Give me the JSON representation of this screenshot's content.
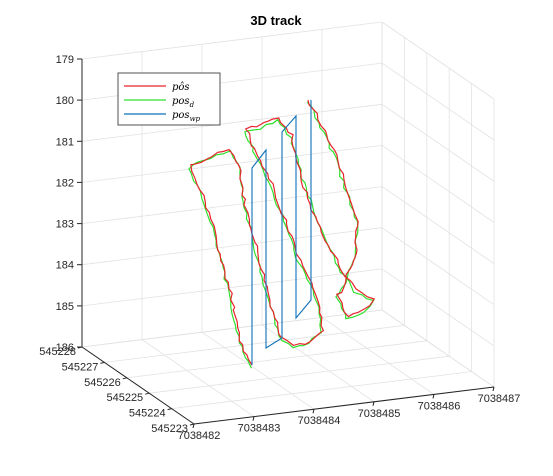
{
  "chart_data": {
    "type": "line",
    "title": "3D track",
    "legend_placement": "top-left",
    "grid": true,
    "axes": {
      "x": {
        "ticks": [
          "7038482",
          "7038483",
          "7038484",
          "7038485",
          "7038486",
          "7038487"
        ],
        "range": [
          7038482,
          7038487
        ]
      },
      "y": {
        "ticks": [
          "545223",
          "545224",
          "545225",
          "545226",
          "545227",
          "545228"
        ],
        "range": [
          545223,
          545228
        ]
      },
      "z": {
        "ticks": [
          "179",
          "180",
          "181",
          "182",
          "183",
          "184",
          "185",
          "186"
        ],
        "range": [
          179,
          186
        ],
        "reversed": true
      }
    },
    "series": [
      {
        "name": "pôs",
        "color": "#e8242b",
        "style": "solid"
      },
      {
        "name": "pos_d",
        "color": "#2ee02e",
        "style": "solid"
      },
      {
        "name": "pos_wp",
        "color": "#0f71b8",
        "style": "solid"
      }
    ],
    "legend": {
      "entries": [
        {
          "main": "pôs",
          "sub": "",
          "color": "#e8242b"
        },
        {
          "main": "pos",
          "sub": "d",
          "color": "#2ee02e"
        },
        {
          "main": "pos",
          "sub": "wp",
          "color": "#0f71b8"
        }
      ]
    },
    "waypoints": [
      {
        "x": 7038483.1,
        "y": 545224.9,
        "z_top": 181.3,
        "z_bottom": 185.5
      },
      {
        "x": 7038483.4,
        "y": 545225.0,
        "z_top": 180.6,
        "z_bottom": 185.9
      },
      {
        "x": 7038483.8,
        "y": 545225.1,
        "z_top": 180.4,
        "z_bottom": 185.4
      },
      {
        "x": 7038484.1,
        "y": 545225.2,
        "z_top": 180.1,
        "z_bottom": 185.1
      }
    ]
  }
}
